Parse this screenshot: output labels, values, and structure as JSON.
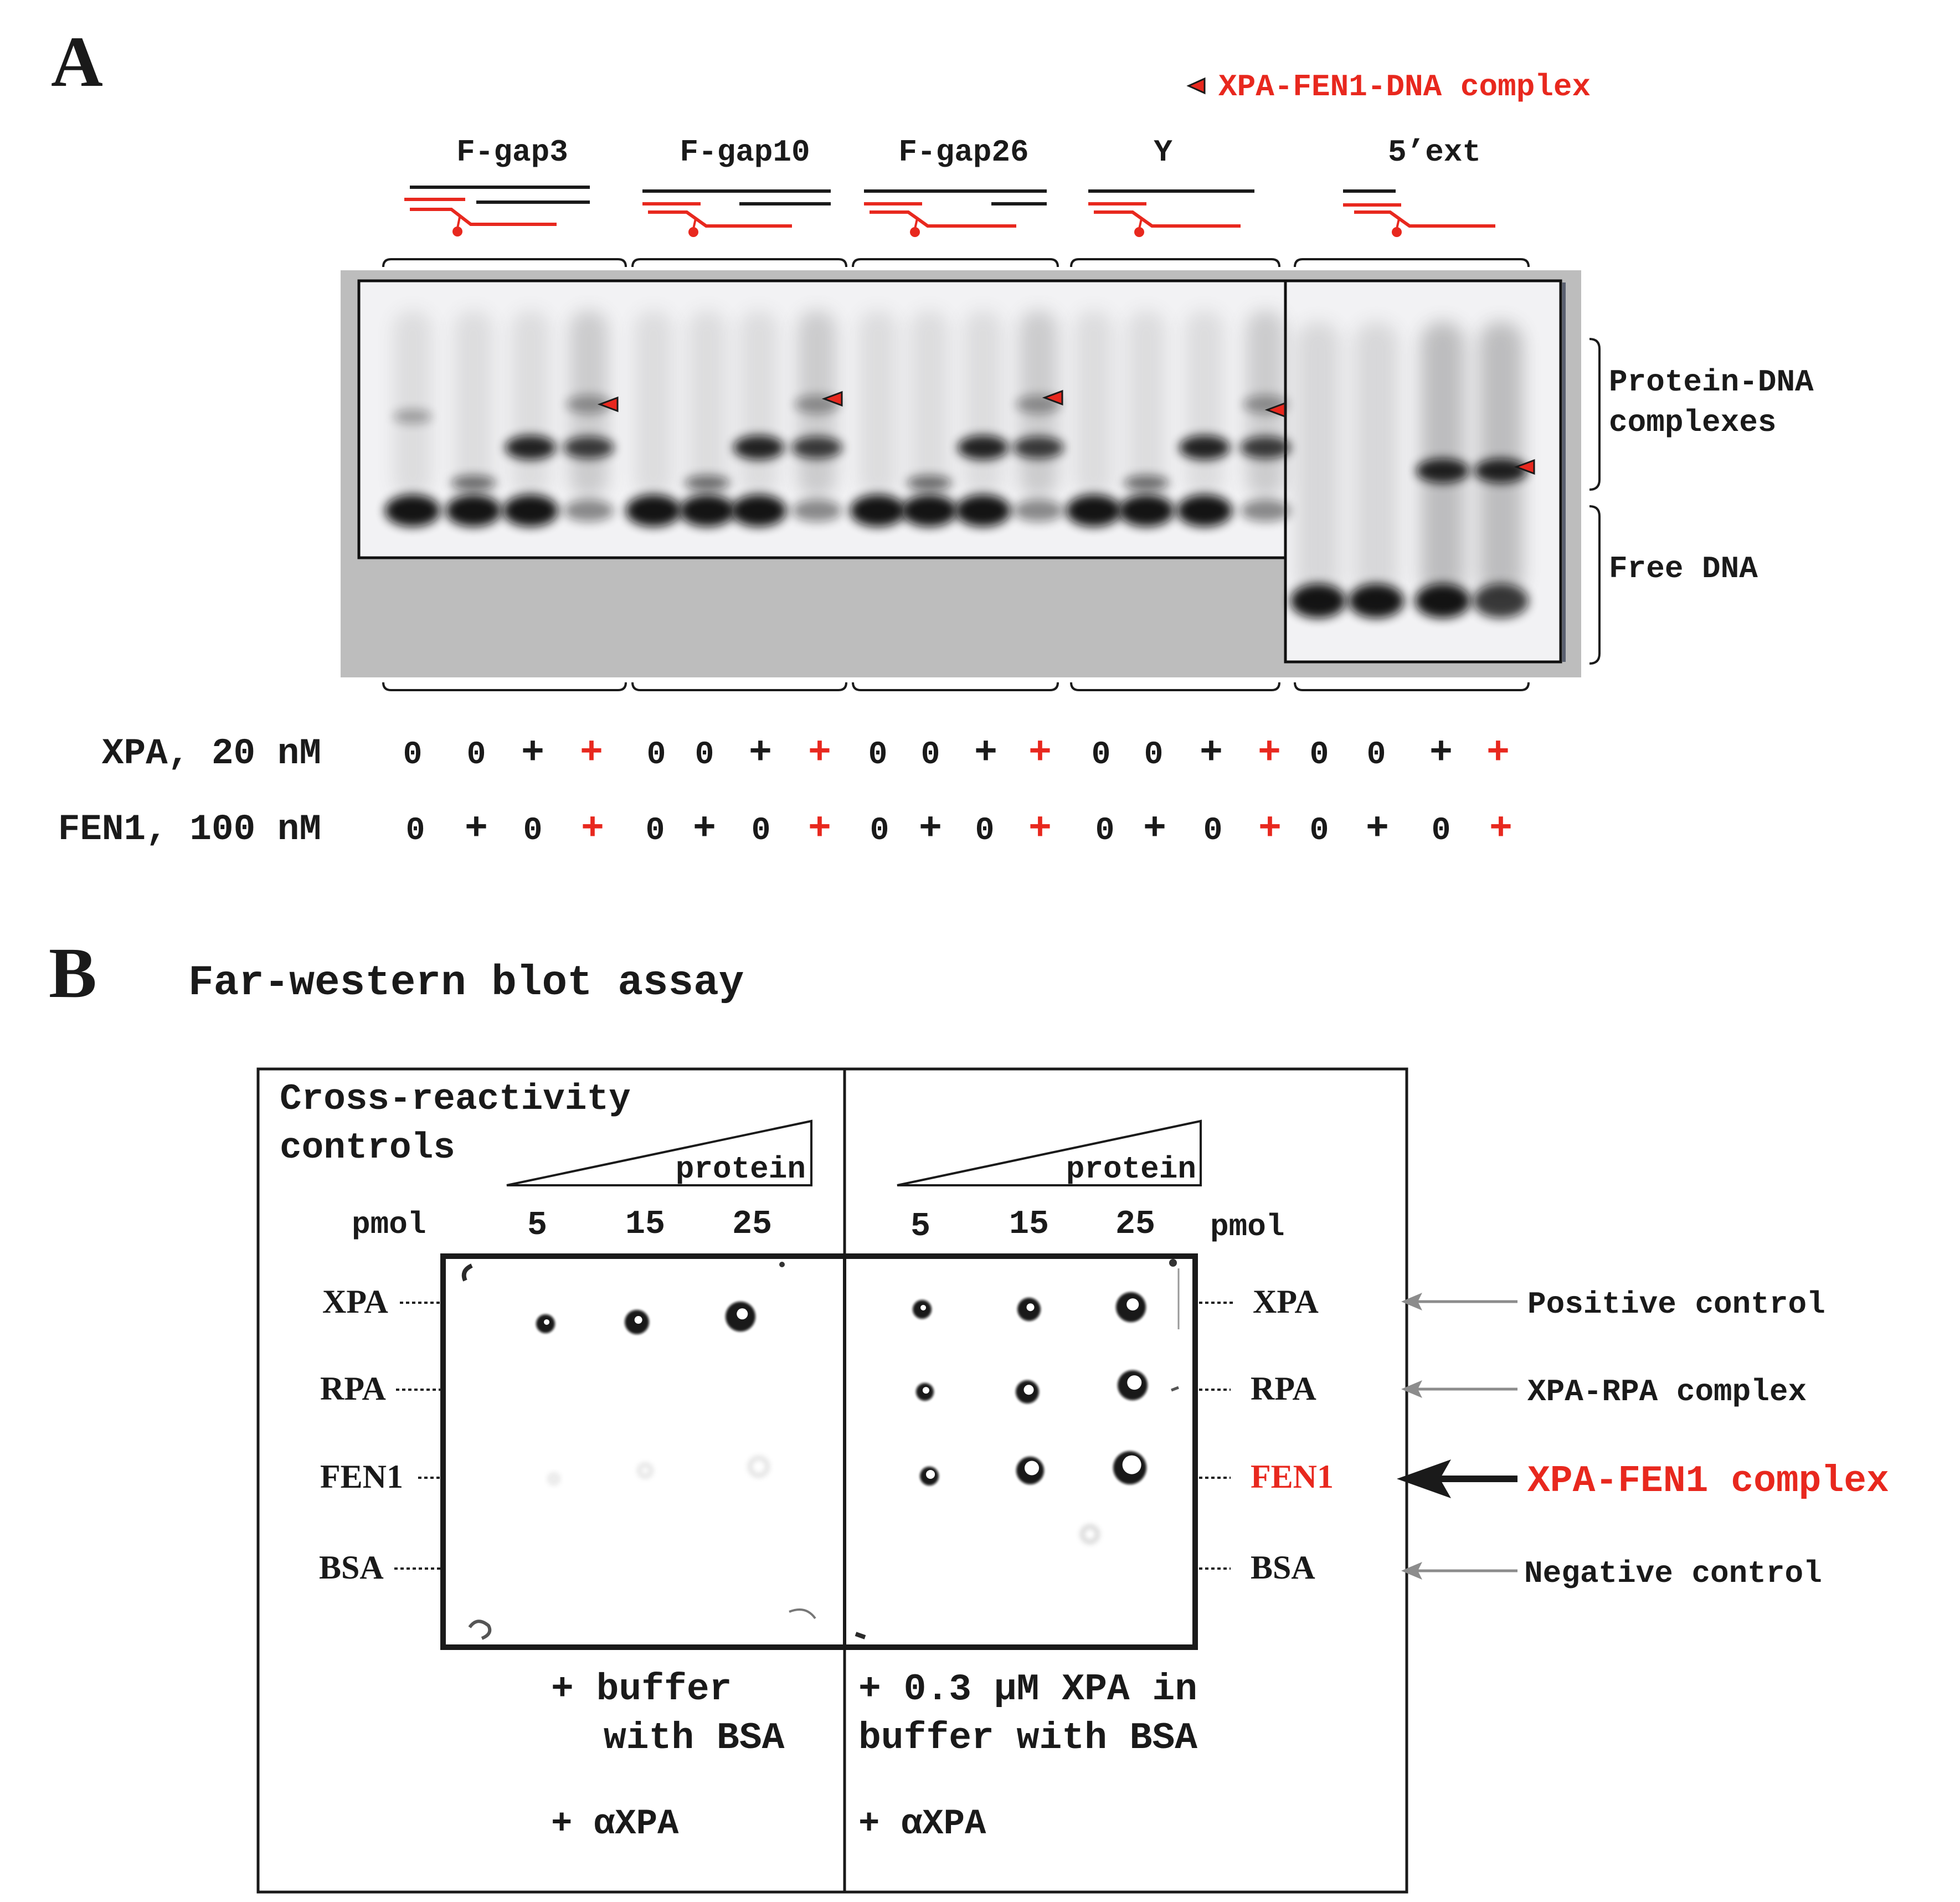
{
  "colors": {
    "accent_red": "#e8281e",
    "ink": "#1a1a1a",
    "gel_bg": "#bdbdbd",
    "gel_lane_bg": "#f2f2f4",
    "gray_arrow": "#8c8c8c"
  },
  "panel_a": {
    "label": "A",
    "legend": "XPA-FEN1-DNA complex",
    "substrates": [
      "F-gap3",
      "F-gap10",
      "F-gap26",
      "Y",
      "5’ext"
    ],
    "side_labels": {
      "complexes_line1": "Protein-DNA",
      "complexes_line2": "complexes",
      "free": "Free DNA"
    },
    "rows": [
      {
        "label": "XPA, 20 nM",
        "values": [
          "0",
          "0",
          "+",
          "+",
          "0",
          "0",
          "+",
          "+",
          "0",
          "0",
          "+",
          "+",
          "0",
          "0",
          "+",
          "+",
          "0",
          "0",
          "+",
          "+"
        ]
      },
      {
        "label": "FEN1, 100 nM",
        "values": [
          "0",
          "+",
          "0",
          "+",
          "0",
          "+",
          "0",
          "+",
          "0",
          "+",
          "0",
          "+",
          "0",
          "+",
          "0",
          "+",
          "0",
          "+",
          "0",
          "+"
        ]
      }
    ]
  },
  "panel_b": {
    "label": "B",
    "title": "Far-western blot assay",
    "cross_line1": "Cross-reactivity",
    "cross_line2": "controls",
    "protein_label": "protein",
    "pmol": "pmol",
    "amounts": [
      "5",
      "15",
      "25"
    ],
    "proteins": [
      "XPA",
      "RPA",
      "FEN1",
      "BSA"
    ],
    "annotations": [
      "Positive control",
      "XPA-RPA complex",
      "XPA-FEN1 complex",
      "Negative control"
    ],
    "left_cond_line1": "+ buffer",
    "left_cond_line2": "with BSA",
    "right_cond_line1": "+ 0.3 μM XPA in",
    "right_cond_line2": "buffer with BSA",
    "antibody_left": "+ αXPA",
    "antibody_right": "+ αXPA"
  }
}
